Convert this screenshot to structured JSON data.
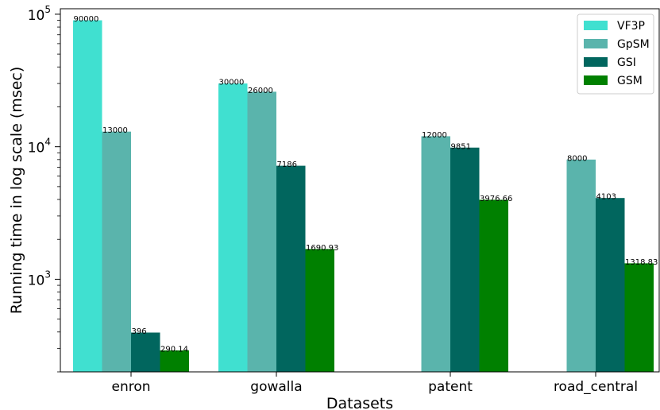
{
  "chart_data": {
    "type": "bar",
    "title": "",
    "xlabel": "Datasets",
    "ylabel": "Running time in log scale (msec)",
    "yscale": "log",
    "ylim": [
      200,
      110000
    ],
    "yticks": [
      {
        "value": 1000,
        "base": "10",
        "exp": "3"
      },
      {
        "value": 10000,
        "base": "10",
        "exp": "4"
      },
      {
        "value": 100000,
        "base": "10",
        "exp": "5"
      }
    ],
    "categories": [
      "enron",
      "gowalla",
      "patent",
      "road_central"
    ],
    "series": [
      {
        "name": "VF3P",
        "color": "#40e0d0",
        "values": [
          90000,
          30000,
          null,
          null
        ],
        "labels": [
          "90000",
          "30000",
          "",
          ""
        ]
      },
      {
        "name": "GpSM",
        "color": "#5ab4ac",
        "values": [
          13000,
          26000,
          12000,
          8000
        ],
        "labels": [
          "13000",
          "26000",
          "12000",
          "8000"
        ]
      },
      {
        "name": "GSI",
        "color": "#01665e",
        "values": [
          396,
          7186,
          9851,
          4103
        ],
        "labels": [
          "396",
          "7186",
          "9851",
          "4103"
        ]
      },
      {
        "name": "GSM",
        "color": "#008000",
        "values": [
          290.14,
          1690.93,
          3976.66,
          1318.83
        ],
        "labels": [
          "290.14",
          "1690.93",
          "3976.66",
          "1318.83"
        ]
      }
    ],
    "legend": "top-right",
    "grid": false
  }
}
